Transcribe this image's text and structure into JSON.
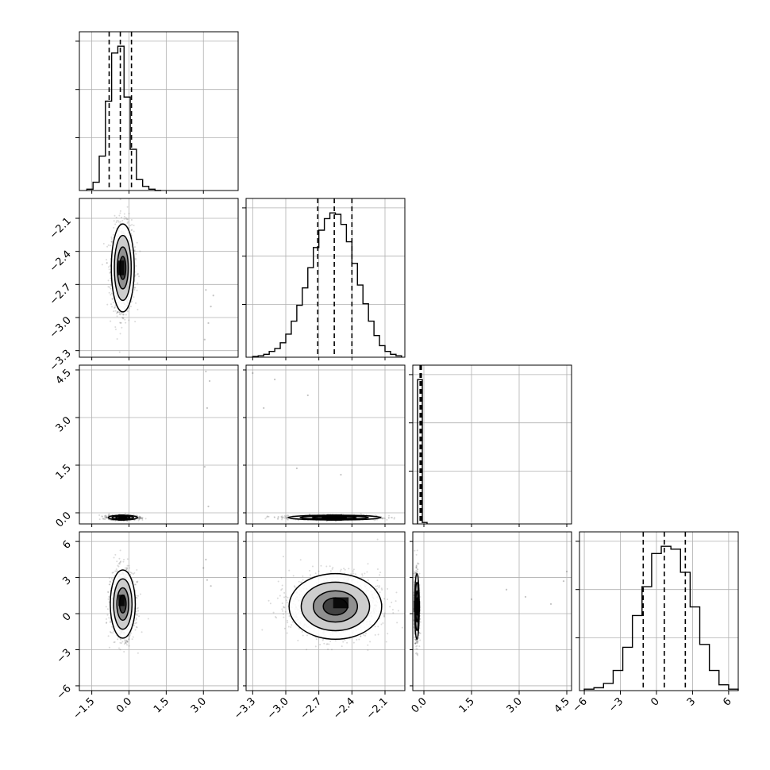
{
  "chart_data": {
    "type": "corner",
    "n_params": 4,
    "title": "",
    "param_labels": [
      "",
      "",
      "",
      ""
    ],
    "grid": true,
    "colors": {
      "line": "#000000",
      "grid": "#b0b0b0",
      "points": "#555555"
    },
    "ranges": [
      [
        -2.0,
        4.4
      ],
      [
        -3.36,
        -1.92
      ],
      [
        -0.35,
        4.65
      ],
      [
        -6.4,
        6.8
      ]
    ],
    "ticks": [
      {
        "values": [
          -1.5,
          0.0,
          1.5,
          3.0
        ],
        "labels": [
          "−1.5",
          "0.0",
          "1.5",
          "3.0"
        ]
      },
      {
        "values": [
          -3.3,
          -3.0,
          -2.7,
          -2.4,
          -2.1
        ],
        "labels": [
          "−3.3",
          "−3.0",
          "−2.7",
          "−2.4",
          "−2.1"
        ]
      },
      {
        "values": [
          0.0,
          1.5,
          3.0,
          4.5
        ],
        "labels": [
          "0.0",
          "1.5",
          "3.0",
          "4.5"
        ]
      },
      {
        "values": [
          -6,
          -3,
          0,
          3,
          6
        ],
        "labels": [
          "−6",
          "−3",
          "0",
          "3",
          "6"
        ]
      }
    ],
    "marginals": [
      {
        "param": 0,
        "bin_edges": [
          -1.7,
          -1.45,
          -1.2,
          -0.95,
          -0.7,
          -0.45,
          -0.2,
          0.05,
          0.3,
          0.55,
          0.8,
          1.05,
          1.3
        ],
        "counts": [
          1,
          6,
          25,
          65,
          100,
          105,
          68,
          30,
          8,
          3,
          1,
          0
        ],
        "quantiles": [
          -0.8,
          -0.35,
          0.1
        ]
      },
      {
        "param": 1,
        "bin_edges": [
          -3.3,
          -3.25,
          -3.2,
          -3.15,
          -3.1,
          -3.05,
          -3.0,
          -2.95,
          -2.9,
          -2.85,
          -2.8,
          -2.75,
          -2.7,
          -2.65,
          -2.6,
          -2.55,
          -2.5,
          -2.45,
          -2.4,
          -2.35,
          -2.3,
          -2.25,
          -2.2,
          -2.15,
          -2.1,
          -2.05,
          -2.0,
          -1.95
        ],
        "counts": [
          0.5,
          1,
          2,
          4,
          6,
          10,
          16,
          25,
          36,
          48,
          62,
          76,
          88,
          96,
          100,
          99,
          92,
          80,
          65,
          50,
          37,
          25,
          15,
          8,
          4,
          2,
          1
        ],
        "quantiles": [
          -2.71,
          -2.56,
          -2.4
        ]
      },
      {
        "param": 2,
        "bin_edges": [
          -0.2,
          -0.05,
          0.1
        ],
        "counts": [
          100,
          1
        ],
        "quantiles": [
          -0.12,
          -0.1,
          -0.08
        ]
      },
      {
        "param": 3,
        "bin_edges": [
          -6.0,
          -5.2,
          -4.4,
          -3.6,
          -2.8,
          -2.0,
          -1.2,
          -0.4,
          0.4,
          1.2,
          2.0,
          2.8,
          3.6,
          4.4,
          5.2,
          6.0,
          6.8
        ],
        "counts": [
          1,
          2,
          5,
          14,
          30,
          52,
          72,
          95,
          100,
          98,
          82,
          58,
          32,
          14,
          4,
          1
        ],
        "quantiles": [
          -1.1,
          0.65,
          2.4
        ]
      }
    ],
    "joints": [
      {
        "x_param": 0,
        "y_param": 1,
        "center": [
          -0.25,
          -2.55
        ],
        "std": [
          0.22,
          0.19
        ],
        "peak_offset": [
          -0.07,
          0.0
        ],
        "outliers": [
          [
            3.1,
            -2.75
          ],
          [
            3.3,
            -2.9
          ],
          [
            3.2,
            -3.05
          ],
          [
            3.05,
            -3.2
          ],
          [
            3.4,
            -2.8
          ]
        ]
      },
      {
        "x_param": 0,
        "y_param": 2,
        "center": [
          -0.25,
          -0.15
        ],
        "std": [
          0.28,
          0.035
        ],
        "peak_offset": [
          -0.05,
          0.0
        ],
        "outliers": [
          [
            3.1,
            4.45
          ],
          [
            3.25,
            4.15
          ],
          [
            3.15,
            3.3
          ],
          [
            3.05,
            1.45
          ],
          [
            3.2,
            0.2
          ]
        ]
      },
      {
        "x_param": 0,
        "y_param": 3,
        "center": [
          -0.25,
          0.8
        ],
        "std": [
          0.24,
          1.35
        ],
        "peak_offset": [
          -0.05,
          0.3
        ],
        "outliers": [
          [
            3.1,
            4.5
          ],
          [
            3.15,
            2.8
          ],
          [
            3.3,
            2.3
          ],
          [
            3.0,
            3.8
          ]
        ]
      },
      {
        "x_param": 1,
        "y_param": 2,
        "center": [
          -2.56,
          -0.15
        ],
        "std": [
          0.2,
          0.035
        ],
        "peak_offset": [
          0.0,
          0.0
        ],
        "outliers": [
          [
            -3.3,
            4.4
          ],
          [
            -3.1,
            4.2
          ],
          [
            -2.8,
            3.7
          ],
          [
            -3.2,
            3.3
          ],
          [
            -2.9,
            1.4
          ],
          [
            -2.5,
            1.2
          ]
        ]
      },
      {
        "x_param": 1,
        "y_param": 3,
        "center": [
          -2.55,
          0.6
        ],
        "std": [
          0.2,
          1.3
        ],
        "peak_offset": [
          0.05,
          0.3
        ],
        "outliers": []
      },
      {
        "x_param": 2,
        "y_param": 3,
        "center": [
          -0.22,
          0.6
        ],
        "std": [
          0.035,
          1.3
        ],
        "peak_offset": [
          0.0,
          0.0
        ],
        "outliers": [
          [
            1.5,
            1.2
          ],
          [
            3.2,
            1.4
          ],
          [
            4.4,
            2.7
          ],
          [
            4.5,
            3.5
          ],
          [
            2.6,
            2.0
          ],
          [
            4.0,
            0.8
          ]
        ]
      }
    ]
  }
}
